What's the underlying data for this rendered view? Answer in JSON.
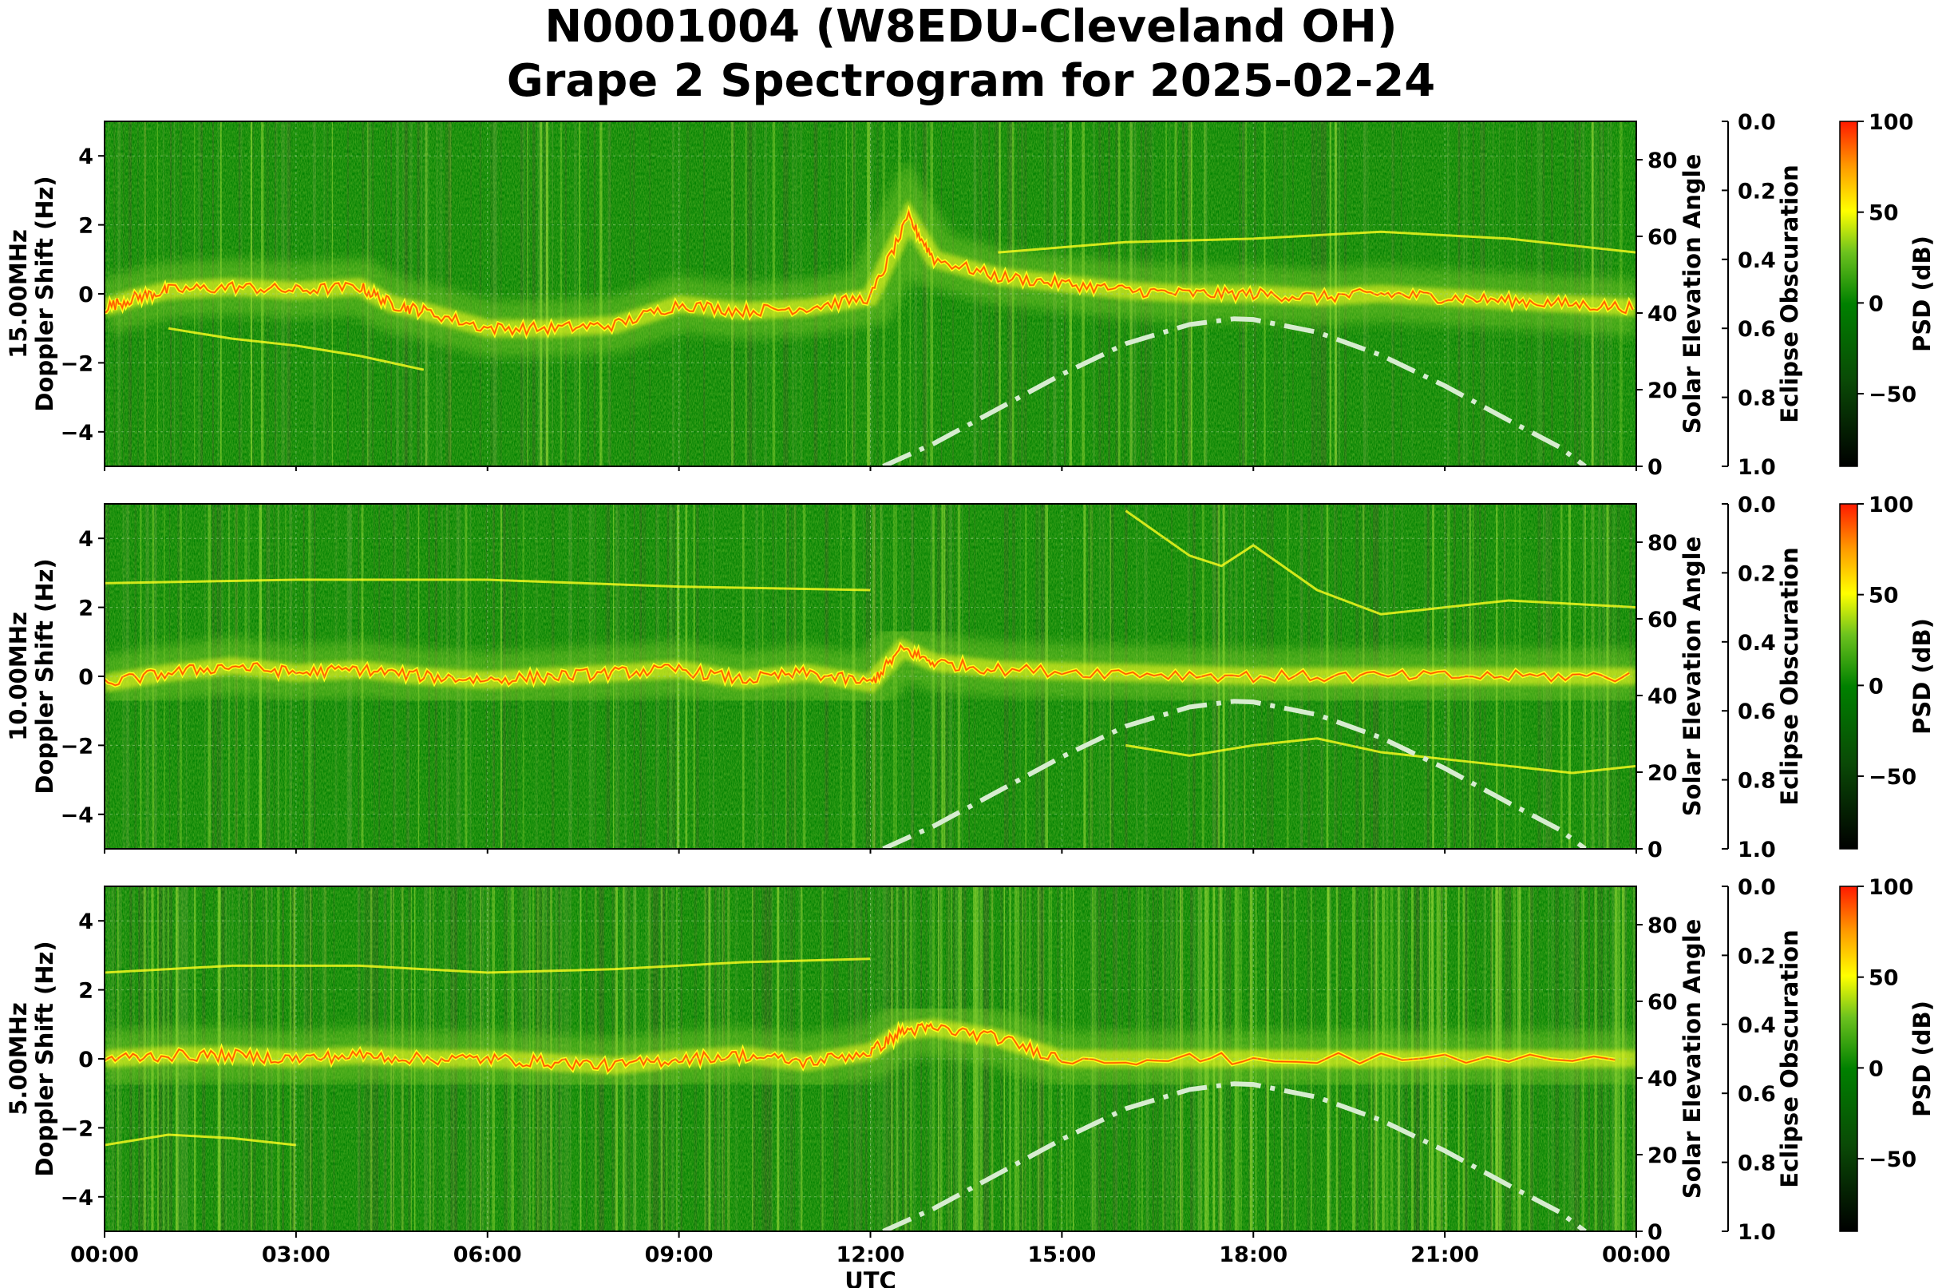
{
  "title_line1": "N0001004 (W8EDU-Cleveland OH)",
  "title_line2": "Grape 2 Spectrogram for 2025-02-24",
  "colors": {
    "background": "#008000",
    "low": "#1a5e12",
    "mid": "#2e8b1f",
    "high_green": "#7fcc2a",
    "yellow": "#ffff1e",
    "orange": "#ff9900",
    "red": "#ff2200",
    "solar_curve": "#d7ecd0"
  },
  "chart_data": [
    {
      "type": "heatmap",
      "panel_label": "15.00MHz",
      "ylabel": "Doppler Shift (Hz)",
      "ylim": [
        -5,
        5
      ],
      "yticks": [
        -4,
        -2,
        0,
        2,
        4
      ],
      "y2label": "Solar Elevation Angle",
      "y2lim": [
        0,
        90
      ],
      "y2ticks": [
        0,
        20,
        40,
        60,
        80
      ],
      "y3label": "Eclipse Obscuration",
      "y3lim": [
        0.0,
        1.0
      ],
      "y3ticks": [
        "0.0",
        "0.2",
        "0.4",
        "0.6",
        "0.8",
        "1.0"
      ],
      "colorbar_label": "PSD (dB)",
      "colorbar_ticks": [
        100,
        50,
        0,
        -50
      ],
      "colorbar_range": [
        -90,
        100
      ],
      "main_trace": [
        [
          0,
          -0.4
        ],
        [
          0.5,
          -0.1
        ],
        [
          1,
          0.1
        ],
        [
          2,
          0.2
        ],
        [
          3,
          0.1
        ],
        [
          4,
          0.2
        ],
        [
          4.5,
          -0.3
        ],
        [
          5,
          -0.5
        ],
        [
          6,
          -1.0
        ],
        [
          7,
          -1.0
        ],
        [
          8,
          -0.9
        ],
        [
          9,
          -0.3
        ],
        [
          10,
          -0.5
        ],
        [
          11,
          -0.4
        ],
        [
          12,
          -0.1
        ],
        [
          12.6,
          2.2
        ],
        [
          13,
          1.0
        ],
        [
          14,
          0.5
        ],
        [
          15,
          0.3
        ],
        [
          16,
          0.1
        ],
        [
          17,
          0.0
        ],
        [
          18,
          0.0
        ],
        [
          19,
          -0.1
        ],
        [
          20,
          0.0
        ],
        [
          21,
          -0.1
        ],
        [
          22,
          -0.2
        ],
        [
          23,
          -0.3
        ],
        [
          24,
          -0.4
        ]
      ],
      "secondary_traces": [
        [
          [
            1,
            -1.0
          ],
          [
            2,
            -1.3
          ],
          [
            3,
            -1.5
          ],
          [
            4,
            -1.8
          ],
          [
            4.5,
            -2.0
          ],
          [
            5,
            -2.2
          ]
        ],
        [
          [
            14,
            1.2
          ],
          [
            16,
            1.5
          ],
          [
            18,
            1.6
          ],
          [
            20,
            1.8
          ],
          [
            22,
            1.6
          ],
          [
            24,
            1.2
          ]
        ]
      ],
      "solar_elevation": [
        [
          12.2,
          0
        ],
        [
          13,
          6
        ],
        [
          14,
          15
        ],
        [
          15,
          24
        ],
        [
          16,
          32
        ],
        [
          17,
          37
        ],
        [
          17.7,
          38.5
        ],
        [
          18,
          38.3
        ],
        [
          19,
          35
        ],
        [
          20,
          29
        ],
        [
          21,
          21
        ],
        [
          22,
          12
        ],
        [
          22.8,
          5
        ],
        [
          23.2,
          0
        ]
      ]
    },
    {
      "type": "heatmap",
      "panel_label": "10.00MHz",
      "ylabel": "Doppler Shift (Hz)",
      "ylim": [
        -5,
        5
      ],
      "yticks": [
        -4,
        -2,
        0,
        2,
        4
      ],
      "y2label": "Solar Elevation Angle",
      "y2lim": [
        0,
        90
      ],
      "y2ticks": [
        0,
        20,
        40,
        60,
        80
      ],
      "y3label": "Eclipse Obscuration",
      "y3lim": [
        0.0,
        1.0
      ],
      "y3ticks": [
        "0.0",
        "0.2",
        "0.4",
        "0.6",
        "0.8",
        "1.0"
      ],
      "colorbar_label": "PSD (dB)",
      "colorbar_ticks": [
        100,
        50,
        0,
        -50
      ],
      "colorbar_range": [
        -90,
        100
      ],
      "main_trace": [
        [
          0,
          -0.2
        ],
        [
          1,
          0.1
        ],
        [
          2,
          0.3
        ],
        [
          3,
          0.1
        ],
        [
          4,
          0.2
        ],
        [
          5,
          0.0
        ],
        [
          6,
          -0.1
        ],
        [
          7,
          0.0
        ],
        [
          8,
          0.1
        ],
        [
          9,
          0.2
        ],
        [
          10,
          -0.1
        ],
        [
          11,
          0.1
        ],
        [
          12,
          -0.2
        ],
        [
          12.5,
          0.8
        ],
        [
          13,
          0.4
        ],
        [
          14,
          0.2
        ],
        [
          16,
          0.1
        ],
        [
          18,
          0.0
        ],
        [
          20,
          0.0
        ],
        [
          22,
          0.0
        ],
        [
          24,
          0.0
        ]
      ],
      "secondary_traces": [
        [
          [
            16,
            -2.0
          ],
          [
            17,
            -2.3
          ],
          [
            18,
            -2.0
          ],
          [
            19,
            -1.8
          ],
          [
            20,
            -2.2
          ],
          [
            21,
            -2.4
          ],
          [
            22,
            -2.6
          ],
          [
            23,
            -2.8
          ],
          [
            24,
            -2.6
          ]
        ],
        [
          [
            16,
            4.8
          ],
          [
            17,
            3.5
          ],
          [
            17.5,
            3.2
          ],
          [
            18,
            3.8
          ],
          [
            19,
            2.5
          ],
          [
            20,
            1.8
          ],
          [
            21,
            2.0
          ],
          [
            22,
            2.2
          ],
          [
            24,
            2.0
          ]
        ],
        [
          [
            0,
            2.7
          ],
          [
            3,
            2.8
          ],
          [
            6,
            2.8
          ],
          [
            9,
            2.6
          ],
          [
            12,
            2.5
          ]
        ]
      ],
      "solar_elevation": [
        [
          12.2,
          0
        ],
        [
          13,
          6
        ],
        [
          14,
          15
        ],
        [
          15,
          24
        ],
        [
          16,
          32
        ],
        [
          17,
          37
        ],
        [
          17.7,
          38.5
        ],
        [
          18,
          38.3
        ],
        [
          19,
          35
        ],
        [
          20,
          29
        ],
        [
          21,
          21
        ],
        [
          22,
          12
        ],
        [
          22.8,
          5
        ],
        [
          23.2,
          0
        ]
      ]
    },
    {
      "type": "heatmap",
      "panel_label": "5.00MHz",
      "ylabel": "Doppler Shift (Hz)",
      "ylim": [
        -5,
        5
      ],
      "yticks": [
        -4,
        -2,
        0,
        2,
        4
      ],
      "y2label": "Solar Elevation Angle",
      "y2lim": [
        0,
        90
      ],
      "y2ticks": [
        0,
        20,
        40,
        60,
        80
      ],
      "y3label": "Eclipse Obscuration",
      "y3lim": [
        0.0,
        1.0
      ],
      "y3ticks": [
        "0.0",
        "0.2",
        "0.4",
        "0.6",
        "0.8",
        "1.0"
      ],
      "colorbar_label": "PSD (dB)",
      "colorbar_ticks": [
        100,
        50,
        0,
        -50
      ],
      "colorbar_range": [
        -90,
        100
      ],
      "main_trace": [
        [
          0,
          0.0
        ],
        [
          1,
          0.1
        ],
        [
          2,
          0.1
        ],
        [
          3,
          0.0
        ],
        [
          4,
          0.1
        ],
        [
          5,
          0.0
        ],
        [
          6,
          0.0
        ],
        [
          7,
          -0.1
        ],
        [
          8,
          -0.2
        ],
        [
          9,
          0.0
        ],
        [
          10,
          0.1
        ],
        [
          11,
          -0.1
        ],
        [
          12,
          0.2
        ],
        [
          12.5,
          0.8
        ],
        [
          13,
          0.9
        ],
        [
          14,
          0.6
        ],
        [
          15,
          0.0
        ],
        [
          18,
          0.0
        ],
        [
          24,
          0.0
        ]
      ],
      "secondary_traces": [
        [
          [
            0,
            2.5
          ],
          [
            2,
            2.7
          ],
          [
            4,
            2.7
          ],
          [
            6,
            2.5
          ],
          [
            8,
            2.6
          ],
          [
            10,
            2.8
          ],
          [
            12,
            2.9
          ]
        ],
        [
          [
            0,
            -2.5
          ],
          [
            1,
            -2.2
          ],
          [
            2,
            -2.3
          ],
          [
            3,
            -2.5
          ]
        ]
      ],
      "solar_elevation": [
        [
          12.2,
          0
        ],
        [
          13,
          6
        ],
        [
          14,
          15
        ],
        [
          15,
          24
        ],
        [
          16,
          32
        ],
        [
          17,
          37
        ],
        [
          17.7,
          38.5
        ],
        [
          18,
          38.3
        ],
        [
          19,
          35
        ],
        [
          20,
          29
        ],
        [
          21,
          21
        ],
        [
          22,
          12
        ],
        [
          22.8,
          5
        ],
        [
          23.2,
          0
        ]
      ],
      "xlabel": "UTC",
      "xlim": [
        0,
        24
      ],
      "xticks": [
        "00:00",
        "03:00",
        "06:00",
        "09:00",
        "12:00",
        "15:00",
        "18:00",
        "21:00",
        "00:00"
      ]
    }
  ]
}
